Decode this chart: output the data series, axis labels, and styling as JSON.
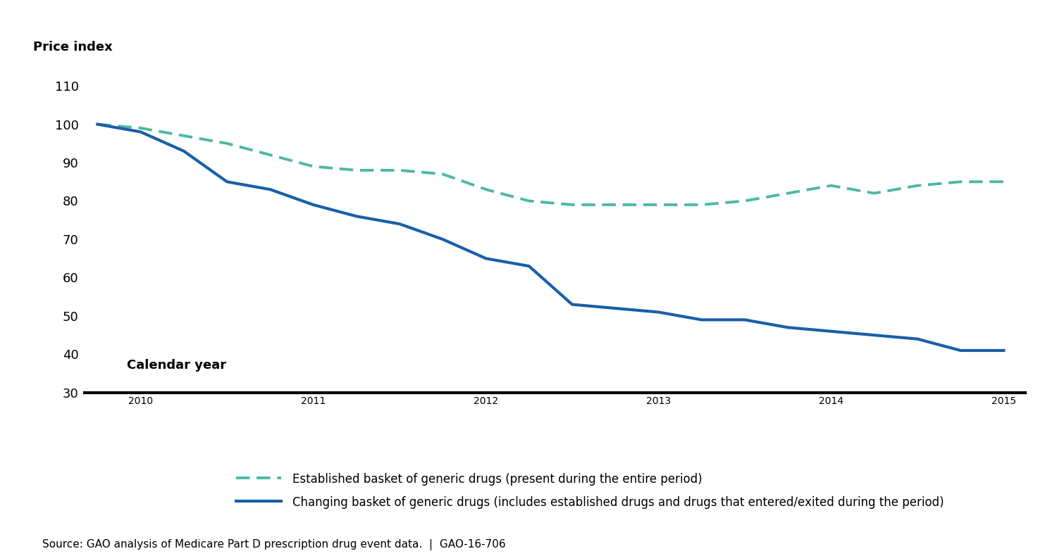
{
  "established_x": [
    0,
    1,
    2,
    3,
    4,
    5,
    6,
    7,
    8,
    9,
    10,
    11,
    12,
    13,
    14,
    15,
    16,
    17,
    18,
    19,
    20,
    21
  ],
  "established_y": [
    100,
    99,
    97,
    95,
    92,
    89,
    88,
    88,
    87,
    83,
    80,
    79,
    79,
    79,
    79,
    80,
    82,
    84,
    82,
    84,
    85,
    85
  ],
  "changing_x": [
    0,
    1,
    2,
    3,
    4,
    5,
    6,
    7,
    8,
    9,
    10,
    11,
    12,
    13,
    14,
    15,
    16,
    17,
    18,
    19,
    20,
    21
  ],
  "changing_y": [
    100,
    98,
    93,
    85,
    83,
    79,
    76,
    74,
    70,
    65,
    63,
    53,
    52,
    51,
    49,
    49,
    47,
    46,
    45,
    44,
    41,
    41
  ],
  "x_tick_positions": [
    1,
    5,
    9,
    13,
    17,
    21
  ],
  "x_tick_labels": [
    "2010",
    "2011",
    "2012",
    "2013",
    "2014",
    "2015"
  ],
  "y_ticks": [
    30,
    40,
    50,
    60,
    70,
    80,
    90,
    100,
    110
  ],
  "ylim": [
    28,
    115
  ],
  "xlim": [
    -0.3,
    21.5
  ],
  "established_color": "#4db8a4",
  "changing_color": "#1a5fa8",
  "established_label": "Established basket of generic drugs (present during the entire period)",
  "changing_label": "Changing basket of generic drugs (includes established drugs and drugs that entered/exited during the period)",
  "ylabel": "Price index",
  "xlabel": "Calendar year",
  "source_text": "Source: GAO analysis of Medicare Part D prescription drug event data.  |  GAO-16-706",
  "line_width": 3.0,
  "dash_linewidth": 2.8
}
